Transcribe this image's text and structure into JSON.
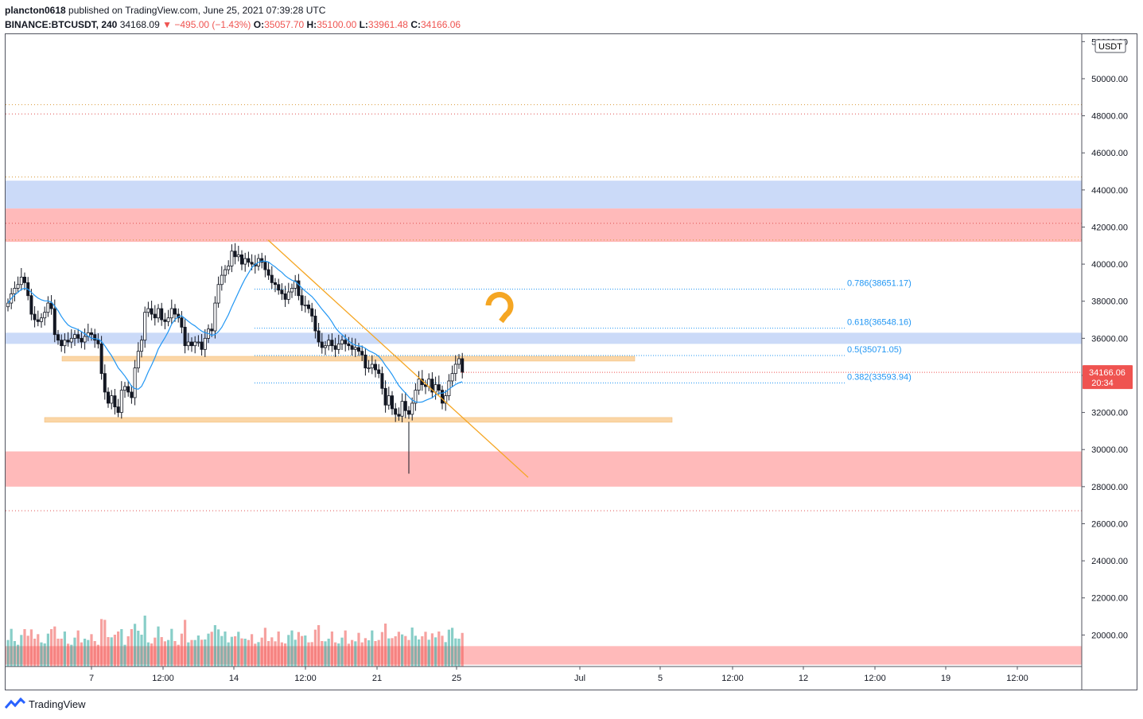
{
  "header": {
    "user": "plancton0618",
    "published_text": "published on TradingView.com, June 25, 2021 07:39:28 UTC",
    "symbol": "BINANCE:BTCUSDT, 240",
    "last": "34168.09",
    "change": "−495.00 (−1.43%)",
    "o_label": "O:",
    "o_value": "35057.70",
    "h_label": "H:",
    "h_value": "35100.00",
    "l_label": "L:",
    "l_value": "33961.48",
    "c_label": "C:",
    "c_value": "34166.06"
  },
  "footer": {
    "brand": "TradingView"
  },
  "colors": {
    "up": "#26a69a",
    "down": "#ef5350",
    "ma": "#2196f3",
    "trendline": "#f5a623",
    "fib": "#2196f3",
    "blue_zone": "#c5d6f7",
    "red_zone": "#ffb3b3",
    "support_zone": "#fbd6a6"
  },
  "chart_data": {
    "type": "candlestick",
    "y_axis": {
      "unit_badge": "USDT",
      "ticks": [
        "20000.00",
        "22000.00",
        "24000.00",
        "26000.00",
        "28000.00",
        "30000.00",
        "32000.00",
        "34000.00",
        "36000.00",
        "38000.00",
        "40000.00",
        "42000.00",
        "44000.00",
        "46000.00",
        "48000.00",
        "50000.00",
        "52000.00"
      ],
      "range": [
        18300,
        52400
      ]
    },
    "x_axis": {
      "ticks": [
        "7",
        "12:00",
        "14",
        "12:00",
        "21",
        "25",
        "Jul",
        "5",
        "12:00",
        "12",
        "12:00",
        "19",
        "12:00"
      ]
    },
    "last_price": {
      "value": "34166.06",
      "countdown": "20:34"
    },
    "fib_levels": [
      {
        "label": "0.786(38651.17)",
        "price": 38651.17
      },
      {
        "label": "0.618(36548.16)",
        "price": 36548.16
      },
      {
        "label": "0.5(35071.05)",
        "price": 35071.05
      },
      {
        "label": "0.382(33593.94)",
        "price": 33593.94
      }
    ],
    "zones": [
      {
        "kind": "blue",
        "from": 43000,
        "to": 44500
      },
      {
        "kind": "red",
        "from": 41200,
        "to": 43000
      },
      {
        "kind": "blue",
        "from": 35700,
        "to": 36300
      },
      {
        "kind": "red",
        "from": 28000,
        "to": 29900
      },
      {
        "kind": "red",
        "from": 18400,
        "to": 19400
      }
    ],
    "support_lines": [
      34900,
      31600
    ],
    "dotted_levels": [
      48600,
      48100,
      44700,
      42200,
      41300,
      26700
    ],
    "trendline": {
      "from_price": 41300,
      "to_price": 28500
    },
    "closes": [
      37900,
      38400,
      38700,
      38900,
      39300,
      39000,
      38300,
      37300,
      37000,
      36900,
      37100,
      37400,
      37900,
      37600,
      36200,
      35900,
      35600,
      35900,
      35800,
      36000,
      36200,
      36000,
      35800,
      36100,
      36300,
      36200,
      35900,
      35700,
      34100,
      33100,
      32500,
      32900,
      32300,
      32000,
      33200,
      33400,
      33100,
      32800,
      34400,
      35300,
      35900,
      37400,
      37600,
      37300,
      37100,
      37600,
      37000,
      36900,
      37100,
      37600,
      37300,
      37100,
      36600,
      35600,
      35800,
      35600,
      35800,
      35800,
      35400,
      36000,
      36500,
      36400,
      37900,
      38900,
      39400,
      39700,
      39900,
      40700,
      40400,
      40500,
      40000,
      40300,
      40100,
      40000,
      39900,
      40300,
      40100,
      39700,
      39400,
      39000,
      38900,
      38600,
      38400,
      38100,
      38500,
      38700,
      39100,
      38300,
      37800,
      37800,
      37600,
      37200,
      36400,
      35800,
      35500,
      35600,
      35900,
      35600,
      35400,
      35700,
      35900,
      35700,
      35600,
      35400,
      35500,
      35300,
      35100,
      34400,
      34400,
      34600,
      34300,
      34100,
      33300,
      32400,
      32900,
      32200,
      31900,
      31800,
      32600,
      32100,
      31900,
      32500,
      33200,
      33800,
      33500,
      33400,
      33800,
      33100,
      33500,
      33200,
      32500,
      32900,
      33700,
      34100,
      34600,
      34900,
      34166
    ]
  }
}
